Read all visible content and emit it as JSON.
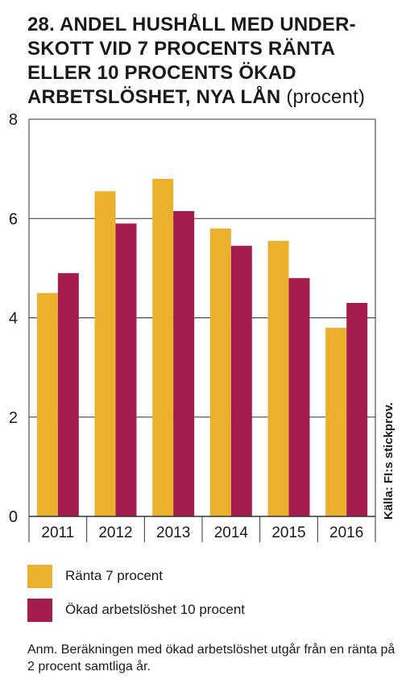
{
  "title": {
    "lines": [
      "28. ANDEL HUSHÅLL MED UNDER-",
      "SKOTT VID 7 PROCENTS RÄNTA",
      "ELLER 10 PROCENTS ÖKAD",
      "ARBETSLÖSHET, NYA LÅN"
    ],
    "unit": "(procent)"
  },
  "source": "Källa: FI:s stickprov.",
  "note": "Anm. Beräkningen med ökad arbetslöshet utgår från en ränta på 2 procent samtliga år.",
  "colors": {
    "series1": "#EBB02E",
    "series2": "#A51D4F",
    "grid": "#333333"
  },
  "chart_data": {
    "type": "bar",
    "categories": [
      "2011",
      "2012",
      "2013",
      "2014",
      "2015",
      "2016"
    ],
    "series": [
      {
        "name": "Ränta 7 procent",
        "values": [
          4.5,
          6.55,
          6.8,
          5.8,
          5.55,
          3.8
        ]
      },
      {
        "name": "Ökad arbetslöshet 10 procent",
        "values": [
          4.9,
          5.9,
          6.15,
          5.45,
          4.8,
          4.3
        ]
      }
    ],
    "ylim": [
      0,
      8
    ],
    "yticks": [
      0,
      2,
      4,
      6,
      8
    ],
    "grid": true,
    "legend": "bottom"
  }
}
